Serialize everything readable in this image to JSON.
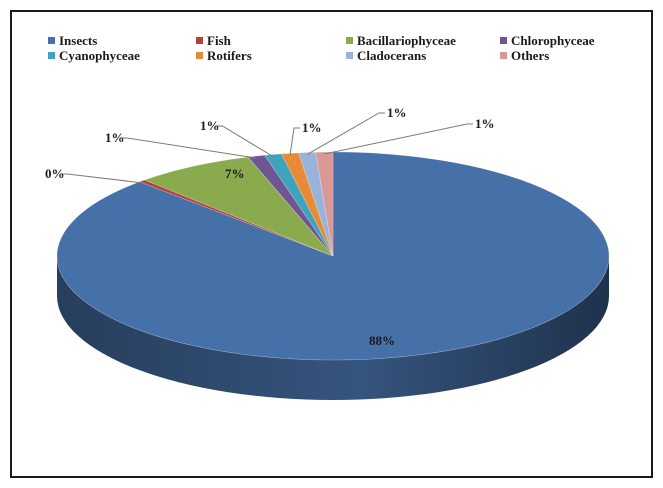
{
  "chart_data": {
    "type": "pie",
    "title": "",
    "three_d": true,
    "legend_position": "top",
    "categories": [
      "Insects",
      "Fish",
      "Bacillariophyceae",
      "Chlorophyceae",
      "Cyanophyceae",
      "Rotifers",
      "Cladocerans",
      "Others"
    ],
    "values": [
      88,
      0.4,
      7,
      1,
      1,
      1,
      1,
      1
    ],
    "data_labels": [
      "88%",
      "0%",
      "7%",
      "1%",
      "1%",
      "1%",
      "1%",
      "1%"
    ],
    "legend": [
      {
        "label": "Insects",
        "color": "#4670a8"
      },
      {
        "label": "Fish",
        "color": "#b5403d"
      },
      {
        "label": "Bacillariophyceae",
        "color": "#8aab4d"
      },
      {
        "label": "Chlorophyceae",
        "color": "#6f5591"
      },
      {
        "label": "Cyanophyceae",
        "color": "#3fa3bc"
      },
      {
        "label": "Rotifers",
        "color": "#e88a36"
      },
      {
        "label": "Cladocerans",
        "color": "#9ab3d9"
      },
      {
        "label": "Others",
        "color": "#d99795"
      }
    ]
  }
}
